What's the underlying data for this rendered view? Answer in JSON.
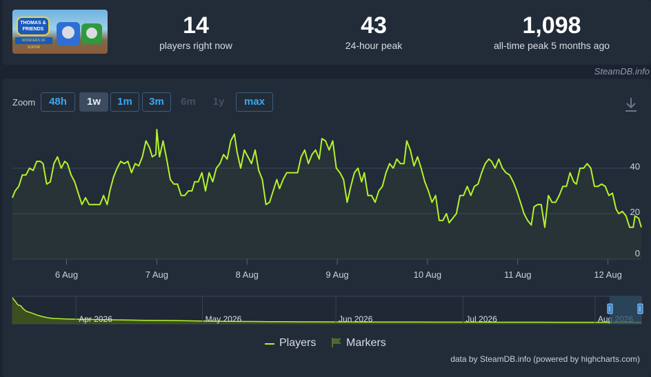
{
  "game": {
    "thumbnail_title": "THOMAS & FRIENDS",
    "thumbnail_subtitle": "WONDERS OF SODOR"
  },
  "stats": [
    {
      "value": "14",
      "label": "players right now"
    },
    {
      "value": "43",
      "label": "24-hour peak"
    },
    {
      "value": "1,098",
      "label": "all-time peak 5 months ago"
    }
  ],
  "credit_top": "SteamDB.info",
  "zoom": {
    "label": "Zoom",
    "options": [
      {
        "label": "48h",
        "state": "enabled"
      },
      {
        "label": "1w",
        "state": "active"
      },
      {
        "label": "1m",
        "state": "enabled"
      },
      {
        "label": "3m",
        "state": "enabled"
      },
      {
        "label": "6m",
        "state": "disabled"
      },
      {
        "label": "1y",
        "state": "disabled"
      },
      {
        "label": "max",
        "state": "enabled"
      }
    ]
  },
  "legend": {
    "players": "Players",
    "markers": "Markers"
  },
  "credit_bottom": "data by SteamDB.info (powered by highcharts.com)",
  "colors": {
    "series": "#b4f32a",
    "background": "#222b38",
    "grid": "#3a4453",
    "navigator_selection": "#2e4c66"
  },
  "icons": {
    "download": "download-icon",
    "markers_flag": "flag-icon",
    "navigator_handle": "handle-icon"
  },
  "chart_data": {
    "type": "line",
    "series_name": "Players",
    "x_tick_labels": [
      "6 Aug",
      "7 Aug",
      "8 Aug",
      "9 Aug",
      "10 Aug",
      "11 Aug",
      "12 Aug"
    ],
    "y_tick_labels": [
      "0",
      "20",
      "40"
    ],
    "ylim": [
      0,
      60
    ],
    "xlim_days": [
      5.4,
      12.37
    ],
    "grid": true,
    "legend_position": "bottom-center",
    "points": [
      [
        5.4,
        27
      ],
      [
        5.43,
        30
      ],
      [
        5.47,
        32
      ],
      [
        5.51,
        37
      ],
      [
        5.55,
        37
      ],
      [
        5.59,
        40
      ],
      [
        5.63,
        39
      ],
      [
        5.67,
        43
      ],
      [
        5.71,
        43
      ],
      [
        5.74,
        42
      ],
      [
        5.78,
        33
      ],
      [
        5.82,
        34
      ],
      [
        5.86,
        42
      ],
      [
        5.9,
        45
      ],
      [
        5.94,
        40
      ],
      [
        5.98,
        43
      ],
      [
        6.01,
        42
      ],
      [
        6.05,
        37
      ],
      [
        6.09,
        34
      ],
      [
        6.13,
        29
      ],
      [
        6.17,
        24
      ],
      [
        6.21,
        27
      ],
      [
        6.25,
        24
      ],
      [
        6.29,
        24
      ],
      [
        6.33,
        24
      ],
      [
        6.37,
        24
      ],
      [
        6.41,
        28
      ],
      [
        6.45,
        24
      ],
      [
        6.48,
        30
      ],
      [
        6.52,
        36
      ],
      [
        6.56,
        40
      ],
      [
        6.6,
        43
      ],
      [
        6.64,
        42
      ],
      [
        6.68,
        43
      ],
      [
        6.72,
        38
      ],
      [
        6.76,
        42
      ],
      [
        6.8,
        41
      ],
      [
        6.84,
        45
      ],
      [
        6.88,
        52
      ],
      [
        6.92,
        49
      ],
      [
        6.95,
        45
      ],
      [
        6.99,
        46
      ],
      [
        7.0,
        57
      ],
      [
        7.03,
        45
      ],
      [
        7.07,
        52
      ],
      [
        7.11,
        44
      ],
      [
        7.15,
        35
      ],
      [
        7.19,
        33
      ],
      [
        7.23,
        33
      ],
      [
        7.27,
        28
      ],
      [
        7.31,
        28
      ],
      [
        7.35,
        30
      ],
      [
        7.39,
        30
      ],
      [
        7.42,
        34
      ],
      [
        7.46,
        34
      ],
      [
        7.5,
        38
      ],
      [
        7.54,
        30
      ],
      [
        7.58,
        38
      ],
      [
        7.62,
        34
      ],
      [
        7.66,
        40
      ],
      [
        7.7,
        42
      ],
      [
        7.74,
        46
      ],
      [
        7.78,
        44
      ],
      [
        7.82,
        52
      ],
      [
        7.86,
        55
      ],
      [
        7.89,
        47
      ],
      [
        7.93,
        40
      ],
      [
        7.97,
        48
      ],
      [
        8.01,
        45
      ],
      [
        8.05,
        42
      ],
      [
        8.09,
        48
      ],
      [
        8.13,
        39
      ],
      [
        8.17,
        35
      ],
      [
        8.21,
        24
      ],
      [
        8.25,
        25
      ],
      [
        8.29,
        30
      ],
      [
        8.33,
        35
      ],
      [
        8.36,
        31
      ],
      [
        8.4,
        35
      ],
      [
        8.44,
        38
      ],
      [
        8.48,
        38
      ],
      [
        8.52,
        38
      ],
      [
        8.56,
        38
      ],
      [
        8.6,
        45
      ],
      [
        8.64,
        48
      ],
      [
        8.68,
        42
      ],
      [
        8.72,
        46
      ],
      [
        8.76,
        48
      ],
      [
        8.8,
        44
      ],
      [
        8.83,
        53
      ],
      [
        8.87,
        52
      ],
      [
        8.91,
        48
      ],
      [
        8.95,
        52
      ],
      [
        8.99,
        40
      ],
      [
        9.03,
        38
      ],
      [
        9.07,
        35
      ],
      [
        9.11,
        25
      ],
      [
        9.15,
        32
      ],
      [
        9.19,
        38
      ],
      [
        9.23,
        40
      ],
      [
        9.27,
        34
      ],
      [
        9.3,
        38
      ],
      [
        9.34,
        28
      ],
      [
        9.38,
        28
      ],
      [
        9.42,
        25
      ],
      [
        9.46,
        30
      ],
      [
        9.5,
        32
      ],
      [
        9.54,
        38
      ],
      [
        9.58,
        42
      ],
      [
        9.62,
        40
      ],
      [
        9.66,
        44
      ],
      [
        9.7,
        42
      ],
      [
        9.74,
        42
      ],
      [
        9.77,
        52
      ],
      [
        9.81,
        48
      ],
      [
        9.85,
        41
      ],
      [
        9.89,
        45
      ],
      [
        9.93,
        40
      ],
      [
        9.97,
        34
      ],
      [
        10.01,
        30
      ],
      [
        10.05,
        25
      ],
      [
        10.09,
        28
      ],
      [
        10.13,
        17
      ],
      [
        10.17,
        17
      ],
      [
        10.21,
        20
      ],
      [
        10.24,
        16
      ],
      [
        10.28,
        18
      ],
      [
        10.32,
        20
      ],
      [
        10.36,
        28
      ],
      [
        10.4,
        28
      ],
      [
        10.44,
        32
      ],
      [
        10.48,
        28
      ],
      [
        10.52,
        32
      ],
      [
        10.56,
        33
      ],
      [
        10.6,
        38
      ],
      [
        10.64,
        42
      ],
      [
        10.68,
        44
      ],
      [
        10.71,
        43
      ],
      [
        10.75,
        40
      ],
      [
        10.79,
        44
      ],
      [
        10.83,
        40
      ],
      [
        10.87,
        38
      ],
      [
        10.91,
        37
      ],
      [
        10.95,
        34
      ],
      [
        10.99,
        30
      ],
      [
        11.03,
        25
      ],
      [
        11.07,
        20
      ],
      [
        11.11,
        17
      ],
      [
        11.15,
        15
      ],
      [
        11.18,
        23
      ],
      [
        11.22,
        24
      ],
      [
        11.26,
        24
      ],
      [
        11.3,
        14
      ],
      [
        11.34,
        28
      ],
      [
        11.38,
        25
      ],
      [
        11.42,
        25
      ],
      [
        11.46,
        28
      ],
      [
        11.5,
        32
      ],
      [
        11.54,
        32
      ],
      [
        11.58,
        38
      ],
      [
        11.62,
        34
      ],
      [
        11.65,
        33
      ],
      [
        11.69,
        40
      ],
      [
        11.73,
        40
      ],
      [
        11.77,
        42
      ],
      [
        11.81,
        40
      ],
      [
        11.85,
        32
      ],
      [
        11.89,
        32
      ],
      [
        11.93,
        33
      ],
      [
        11.97,
        32
      ],
      [
        12.01,
        28
      ],
      [
        12.05,
        29
      ],
      [
        12.09,
        22
      ],
      [
        12.12,
        20
      ],
      [
        12.16,
        21
      ],
      [
        12.2,
        19
      ],
      [
        12.24,
        14
      ],
      [
        12.28,
        14
      ],
      [
        12.3,
        19
      ],
      [
        12.34,
        18
      ],
      [
        12.37,
        14
      ]
    ],
    "navigator": {
      "tick_labels": [
        "Apr 2026",
        "May 2026",
        "Jun 2026",
        "Jul 2026",
        "Aug 2026"
      ],
      "values": [
        [
          0,
          1098
        ],
        [
          4,
          950
        ],
        [
          8,
          780
        ],
        [
          12,
          740
        ],
        [
          16,
          600
        ],
        [
          20,
          500
        ],
        [
          28,
          420
        ],
        [
          36,
          330
        ],
        [
          44,
          260
        ],
        [
          52,
          210
        ],
        [
          60,
          180
        ],
        [
          68,
          170
        ],
        [
          76,
          160
        ],
        [
          90,
          150
        ],
        [
          110,
          140
        ],
        [
          130,
          130
        ],
        [
          150,
          120
        ],
        [
          170,
          110
        ],
        [
          190,
          100
        ],
        [
          210,
          95
        ],
        [
          230,
          90
        ],
        [
          250,
          80
        ],
        [
          270,
          70
        ],
        [
          290,
          60
        ],
        [
          310,
          55
        ],
        [
          330,
          50
        ],
        [
          350,
          45
        ],
        [
          370,
          40
        ],
        [
          390,
          38
        ],
        [
          410,
          35
        ],
        [
          430,
          32
        ],
        [
          450,
          30
        ],
        [
          470,
          28
        ],
        [
          490,
          26
        ],
        [
          510,
          25
        ],
        [
          530,
          24
        ],
        [
          550,
          22
        ],
        [
          570,
          21
        ],
        [
          590,
          20
        ],
        [
          610,
          19
        ],
        [
          630,
          18
        ],
        [
          650,
          17
        ],
        [
          670,
          17
        ],
        [
          690,
          16
        ],
        [
          710,
          15
        ],
        [
          730,
          15
        ],
        [
          750,
          14
        ],
        [
          770,
          14
        ],
        [
          790,
          13
        ],
        [
          810,
          13
        ],
        [
          830,
          12
        ],
        [
          850,
          12
        ],
        [
          870,
          12
        ],
        [
          890,
          11
        ],
        [
          910,
          11
        ]
      ]
    }
  }
}
